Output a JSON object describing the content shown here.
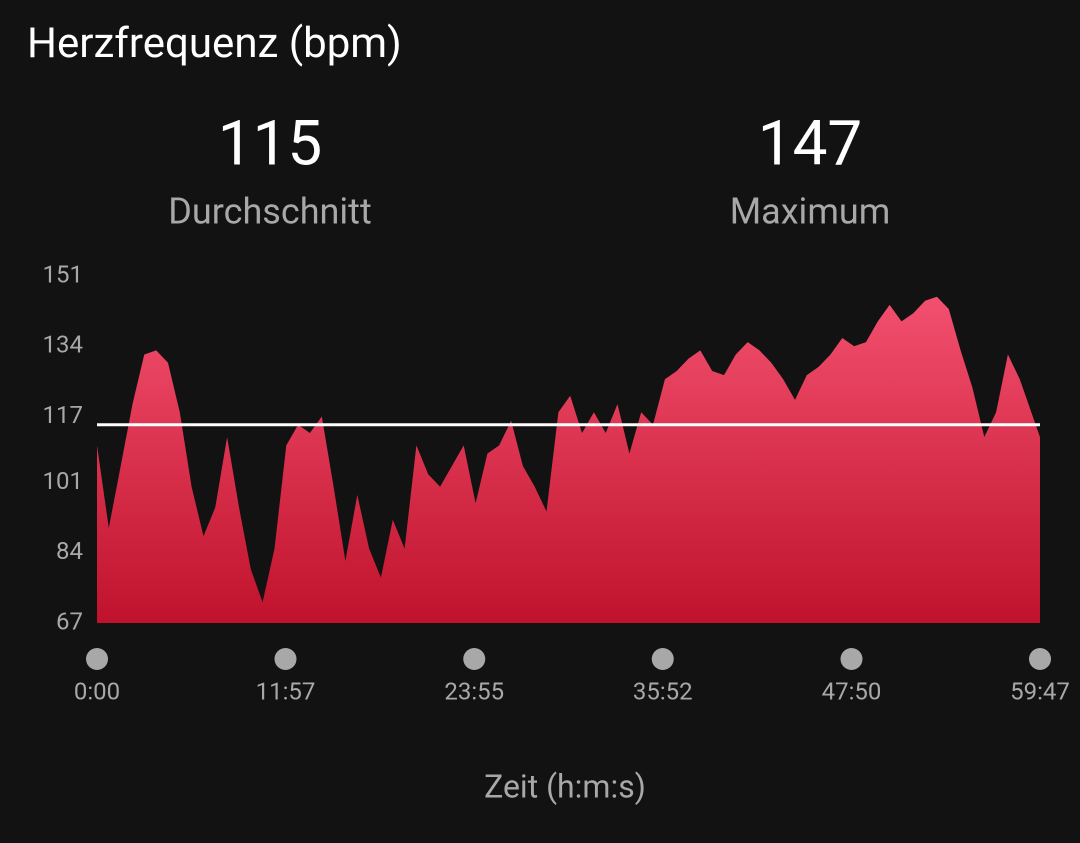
{
  "chart_data": {
    "type": "area",
    "title": "Herzfrequenz (bpm)",
    "stats": [
      {
        "value": 115,
        "label": "Durchschnitt"
      },
      {
        "value": 147,
        "label": "Maximum"
      }
    ],
    "xlabel": "Zeit (h:m:s)",
    "xlim": [
      0,
      3587
    ],
    "xticks": [
      {
        "value": 0,
        "label": "0:00"
      },
      {
        "value": 717,
        "label": "11:57"
      },
      {
        "value": 1435,
        "label": "23:55"
      },
      {
        "value": 2152,
        "label": "35:52"
      },
      {
        "value": 2870,
        "label": "47:50"
      },
      {
        "value": 3587,
        "label": "59:47"
      }
    ],
    "ylim": [
      67,
      151
    ],
    "yticks": [
      67,
      84,
      101,
      117,
      134,
      151
    ],
    "color_top": "#f2506f",
    "color_bottom": "#c0122c",
    "average_line_color": "#ffffff",
    "x": [
      0,
      45,
      90,
      135,
      180,
      225,
      270,
      315,
      360,
      405,
      450,
      495,
      540,
      585,
      630,
      675,
      720,
      765,
      810,
      855,
      900,
      945,
      990,
      1035,
      1080,
      1125,
      1170,
      1215,
      1260,
      1305,
      1350,
      1395,
      1440,
      1485,
      1530,
      1575,
      1620,
      1665,
      1710,
      1755,
      1800,
      1845,
      1890,
      1935,
      1980,
      2025,
      2070,
      2115,
      2160,
      2205,
      2250,
      2295,
      2340,
      2385,
      2430,
      2475,
      2520,
      2565,
      2610,
      2655,
      2700,
      2745,
      2790,
      2835,
      2880,
      2925,
      2970,
      3015,
      3060,
      3105,
      3150,
      3195,
      3240,
      3285,
      3330,
      3375,
      3420,
      3465,
      3510,
      3587
    ],
    "values": [
      110,
      90,
      105,
      120,
      132,
      133,
      130,
      118,
      100,
      88,
      95,
      112,
      95,
      80,
      72,
      85,
      110,
      115,
      113,
      117,
      100,
      82,
      98,
      85,
      78,
      92,
      85,
      110,
      103,
      100,
      105,
      110,
      96,
      108,
      110,
      116,
      105,
      100,
      94,
      118,
      122,
      113,
      118,
      113,
      120,
      108,
      118,
      115,
      126,
      128,
      131,
      133,
      128,
      127,
      132,
      135,
      133,
      130,
      126,
      121,
      127,
      129,
      132,
      136,
      134,
      135,
      140,
      144,
      140,
      142,
      145,
      146,
      143,
      133,
      124,
      112,
      118,
      132,
      126,
      112
    ]
  }
}
